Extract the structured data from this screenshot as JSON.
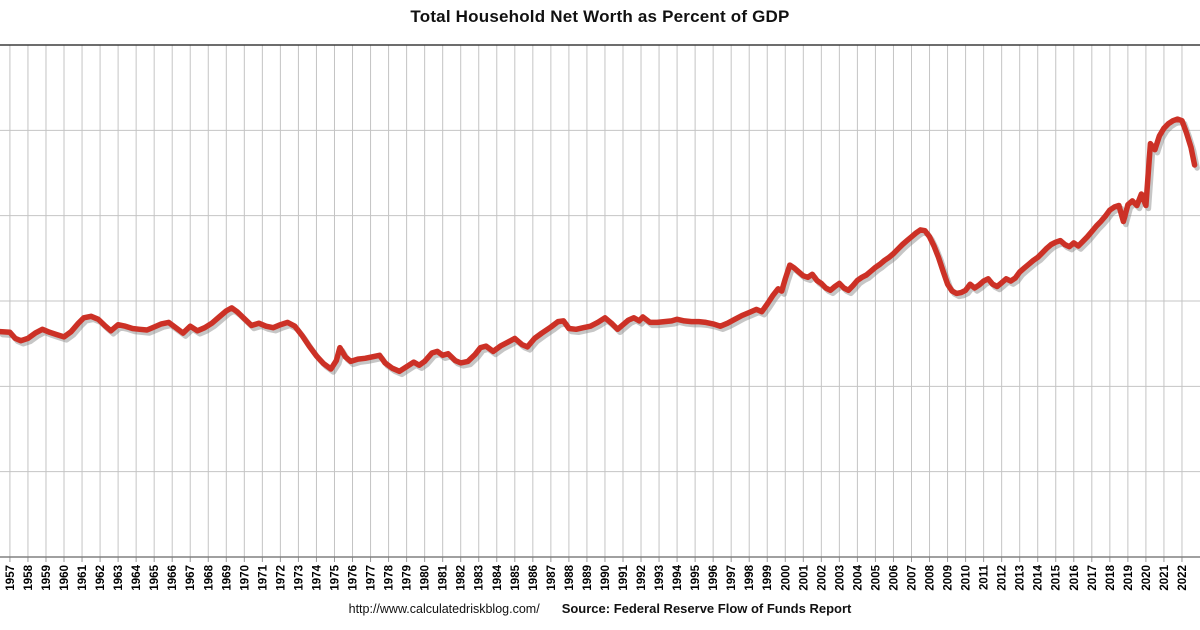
{
  "title": "Total Household Net Worth as Percent of GDP",
  "footer": {
    "url": "http://www.calculatedriskblog.com/",
    "source": "Source: Federal Reserve Flow of Funds Report"
  },
  "colors": {
    "line": "#cc3126",
    "line_shadow": "rgba(128,128,128,0.45)",
    "gridline": "#c4c4c4",
    "top_border": "#3d3d3d",
    "axis": "#808080",
    "tick": "#999999",
    "text": "#000000",
    "background": "#ffffff"
  },
  "chart_data": {
    "type": "line",
    "title": "Total Household Net Worth as Percent of GDP",
    "xlabel": "",
    "ylabel": "",
    "y_axis_labels_visible": false,
    "legend": "none",
    "grid": "on",
    "xlim": [
      1956.45,
      2023.0
    ],
    "ylim": [
      50,
      720
    ],
    "x_tick_labels": [
      "1957",
      "1958",
      "1959",
      "1960",
      "1961",
      "1962",
      "1963",
      "1964",
      "1965",
      "1966",
      "1967",
      "1968",
      "1969",
      "1970",
      "1971",
      "1972",
      "1973",
      "1974",
      "1975",
      "1976",
      "1977",
      "1978",
      "1979",
      "1980",
      "1981",
      "1982",
      "1983",
      "1984",
      "1985",
      "1986",
      "1987",
      "1988",
      "1989",
      "1990",
      "1991",
      "1992",
      "1993",
      "1994",
      "1995",
      "1996",
      "1997",
      "1998",
      "1999",
      "2000",
      "2001",
      "2002",
      "2003",
      "2004",
      "2005",
      "2006",
      "2007",
      "2008",
      "2009",
      "2010",
      "2011",
      "2012",
      "2013",
      "2014",
      "2015",
      "2016",
      "2017",
      "2018",
      "2019",
      "2020",
      "2021",
      "2022"
    ],
    "series": [
      {
        "name": "Household Net Worth as Percent of GDP",
        "units": "% of GDP",
        "points": [
          [
            1956.45,
            345
          ],
          [
            1957.0,
            344
          ],
          [
            1957.3,
            336
          ],
          [
            1957.6,
            333
          ],
          [
            1958.0,
            336
          ],
          [
            1958.4,
            343
          ],
          [
            1958.8,
            348
          ],
          [
            1959.2,
            344
          ],
          [
            1959.6,
            341
          ],
          [
            1960.0,
            338
          ],
          [
            1960.4,
            345
          ],
          [
            1960.8,
            356
          ],
          [
            1961.1,
            363
          ],
          [
            1961.5,
            365
          ],
          [
            1961.9,
            361
          ],
          [
            1962.3,
            352
          ],
          [
            1962.6,
            346
          ],
          [
            1963.0,
            354
          ],
          [
            1963.4,
            352
          ],
          [
            1963.8,
            349
          ],
          [
            1964.2,
            348
          ],
          [
            1964.6,
            347
          ],
          [
            1965.0,
            351
          ],
          [
            1965.4,
            355
          ],
          [
            1965.8,
            357
          ],
          [
            1966.2,
            350
          ],
          [
            1966.6,
            343
          ],
          [
            1967.0,
            352
          ],
          [
            1967.4,
            346
          ],
          [
            1967.8,
            350
          ],
          [
            1968.2,
            356
          ],
          [
            1968.6,
            364
          ],
          [
            1969.0,
            372
          ],
          [
            1969.3,
            376
          ],
          [
            1969.6,
            371
          ],
          [
            1970.0,
            362
          ],
          [
            1970.4,
            353
          ],
          [
            1970.8,
            356
          ],
          [
            1971.2,
            352
          ],
          [
            1971.6,
            350
          ],
          [
            1972.0,
            354
          ],
          [
            1972.4,
            357
          ],
          [
            1972.8,
            352
          ],
          [
            1973.2,
            340
          ],
          [
            1973.6,
            326
          ],
          [
            1974.0,
            313
          ],
          [
            1974.4,
            303
          ],
          [
            1974.8,
            296
          ],
          [
            1975.1,
            307
          ],
          [
            1975.3,
            324
          ],
          [
            1975.6,
            312
          ],
          [
            1975.9,
            306
          ],
          [
            1976.3,
            309
          ],
          [
            1976.7,
            310
          ],
          [
            1977.1,
            312
          ],
          [
            1977.5,
            314
          ],
          [
            1977.8,
            304
          ],
          [
            1978.2,
            297
          ],
          [
            1978.6,
            293
          ],
          [
            1979.0,
            299
          ],
          [
            1979.4,
            305
          ],
          [
            1979.7,
            301
          ],
          [
            1980.0,
            306
          ],
          [
            1980.4,
            317
          ],
          [
            1980.7,
            319
          ],
          [
            1981.0,
            314
          ],
          [
            1981.3,
            316
          ],
          [
            1981.7,
            307
          ],
          [
            1982.0,
            304
          ],
          [
            1982.4,
            306
          ],
          [
            1982.8,
            315
          ],
          [
            1983.1,
            324
          ],
          [
            1983.4,
            326
          ],
          [
            1983.8,
            319
          ],
          [
            1984.2,
            326
          ],
          [
            1984.6,
            331
          ],
          [
            1985.0,
            336
          ],
          [
            1985.4,
            328
          ],
          [
            1985.7,
            325
          ],
          [
            1986.1,
            336
          ],
          [
            1986.5,
            343
          ],
          [
            1987.0,
            351
          ],
          [
            1987.4,
            358
          ],
          [
            1987.7,
            359
          ],
          [
            1988.0,
            349
          ],
          [
            1988.4,
            348
          ],
          [
            1988.8,
            350
          ],
          [
            1989.2,
            352
          ],
          [
            1989.6,
            357
          ],
          [
            1990.0,
            363
          ],
          [
            1990.4,
            355
          ],
          [
            1990.7,
            348
          ],
          [
            1991.0,
            354
          ],
          [
            1991.3,
            360
          ],
          [
            1991.6,
            363
          ],
          [
            1991.9,
            359
          ],
          [
            1992.1,
            364
          ],
          [
            1992.5,
            357
          ],
          [
            1992.9,
            357
          ],
          [
            1993.3,
            358
          ],
          [
            1993.7,
            359
          ],
          [
            1994.0,
            361
          ],
          [
            1994.4,
            359
          ],
          [
            1994.8,
            358
          ],
          [
            1995.2,
            358
          ],
          [
            1995.6,
            357
          ],
          [
            1996.0,
            355
          ],
          [
            1996.4,
            352
          ],
          [
            1996.8,
            356
          ],
          [
            1997.2,
            361
          ],
          [
            1997.6,
            366
          ],
          [
            1998.0,
            370
          ],
          [
            1998.4,
            374
          ],
          [
            1998.7,
            371
          ],
          [
            1999.0,
            381
          ],
          [
            1999.3,
            392
          ],
          [
            1999.6,
            401
          ],
          [
            1999.8,
            398
          ],
          [
            2000.0,
            414
          ],
          [
            2000.25,
            432
          ],
          [
            2000.5,
            428
          ],
          [
            2000.75,
            423
          ],
          [
            2001.0,
            418
          ],
          [
            2001.25,
            416
          ],
          [
            2001.5,
            420
          ],
          [
            2001.75,
            412
          ],
          [
            2002.0,
            408
          ],
          [
            2002.25,
            402
          ],
          [
            2002.5,
            399
          ],
          [
            2002.75,
            404
          ],
          [
            2003.0,
            408
          ],
          [
            2003.25,
            402
          ],
          [
            2003.5,
            399
          ],
          [
            2003.75,
            405
          ],
          [
            2004.0,
            412
          ],
          [
            2004.25,
            416
          ],
          [
            2004.5,
            419
          ],
          [
            2004.75,
            424
          ],
          [
            2005.0,
            429
          ],
          [
            2005.25,
            433
          ],
          [
            2005.5,
            438
          ],
          [
            2005.75,
            442
          ],
          [
            2006.0,
            447
          ],
          [
            2006.25,
            453
          ],
          [
            2006.5,
            459
          ],
          [
            2006.75,
            464
          ],
          [
            2007.0,
            469
          ],
          [
            2007.25,
            474
          ],
          [
            2007.5,
            478
          ],
          [
            2007.75,
            477
          ],
          [
            2008.0,
            469
          ],
          [
            2008.25,
            457
          ],
          [
            2008.5,
            442
          ],
          [
            2008.75,
            424
          ],
          [
            2009.0,
            407
          ],
          [
            2009.25,
            398
          ],
          [
            2009.5,
            395
          ],
          [
            2009.75,
            396
          ],
          [
            2010.0,
            399
          ],
          [
            2010.25,
            407
          ],
          [
            2010.5,
            402
          ],
          [
            2010.75,
            406
          ],
          [
            2011.0,
            411
          ],
          [
            2011.25,
            414
          ],
          [
            2011.5,
            407
          ],
          [
            2011.75,
            404
          ],
          [
            2012.0,
            409
          ],
          [
            2012.25,
            414
          ],
          [
            2012.5,
            411
          ],
          [
            2012.75,
            415
          ],
          [
            2013.0,
            423
          ],
          [
            2013.25,
            428
          ],
          [
            2013.5,
            433
          ],
          [
            2013.75,
            438
          ],
          [
            2014.0,
            442
          ],
          [
            2014.25,
            448
          ],
          [
            2014.5,
            454
          ],
          [
            2014.75,
            459
          ],
          [
            2015.0,
            462
          ],
          [
            2015.25,
            464
          ],
          [
            2015.5,
            459
          ],
          [
            2015.75,
            456
          ],
          [
            2016.0,
            461
          ],
          [
            2016.25,
            457
          ],
          [
            2016.5,
            463
          ],
          [
            2016.75,
            469
          ],
          [
            2017.0,
            476
          ],
          [
            2017.25,
            483
          ],
          [
            2017.5,
            489
          ],
          [
            2017.75,
            496
          ],
          [
            2018.0,
            504
          ],
          [
            2018.25,
            508
          ],
          [
            2018.5,
            510
          ],
          [
            2018.75,
            489
          ],
          [
            2019.0,
            511
          ],
          [
            2019.25,
            516
          ],
          [
            2019.5,
            510
          ],
          [
            2019.75,
            525
          ],
          [
            2020.0,
            510
          ],
          [
            2020.25,
            591
          ],
          [
            2020.5,
            583
          ],
          [
            2020.75,
            601
          ],
          [
            2021.0,
            611
          ],
          [
            2021.25,
            617
          ],
          [
            2021.5,
            621
          ],
          [
            2021.75,
            623
          ],
          [
            2022.0,
            621
          ],
          [
            2022.25,
            605
          ],
          [
            2022.5,
            586
          ],
          [
            2022.7,
            563
          ]
        ]
      }
    ]
  }
}
